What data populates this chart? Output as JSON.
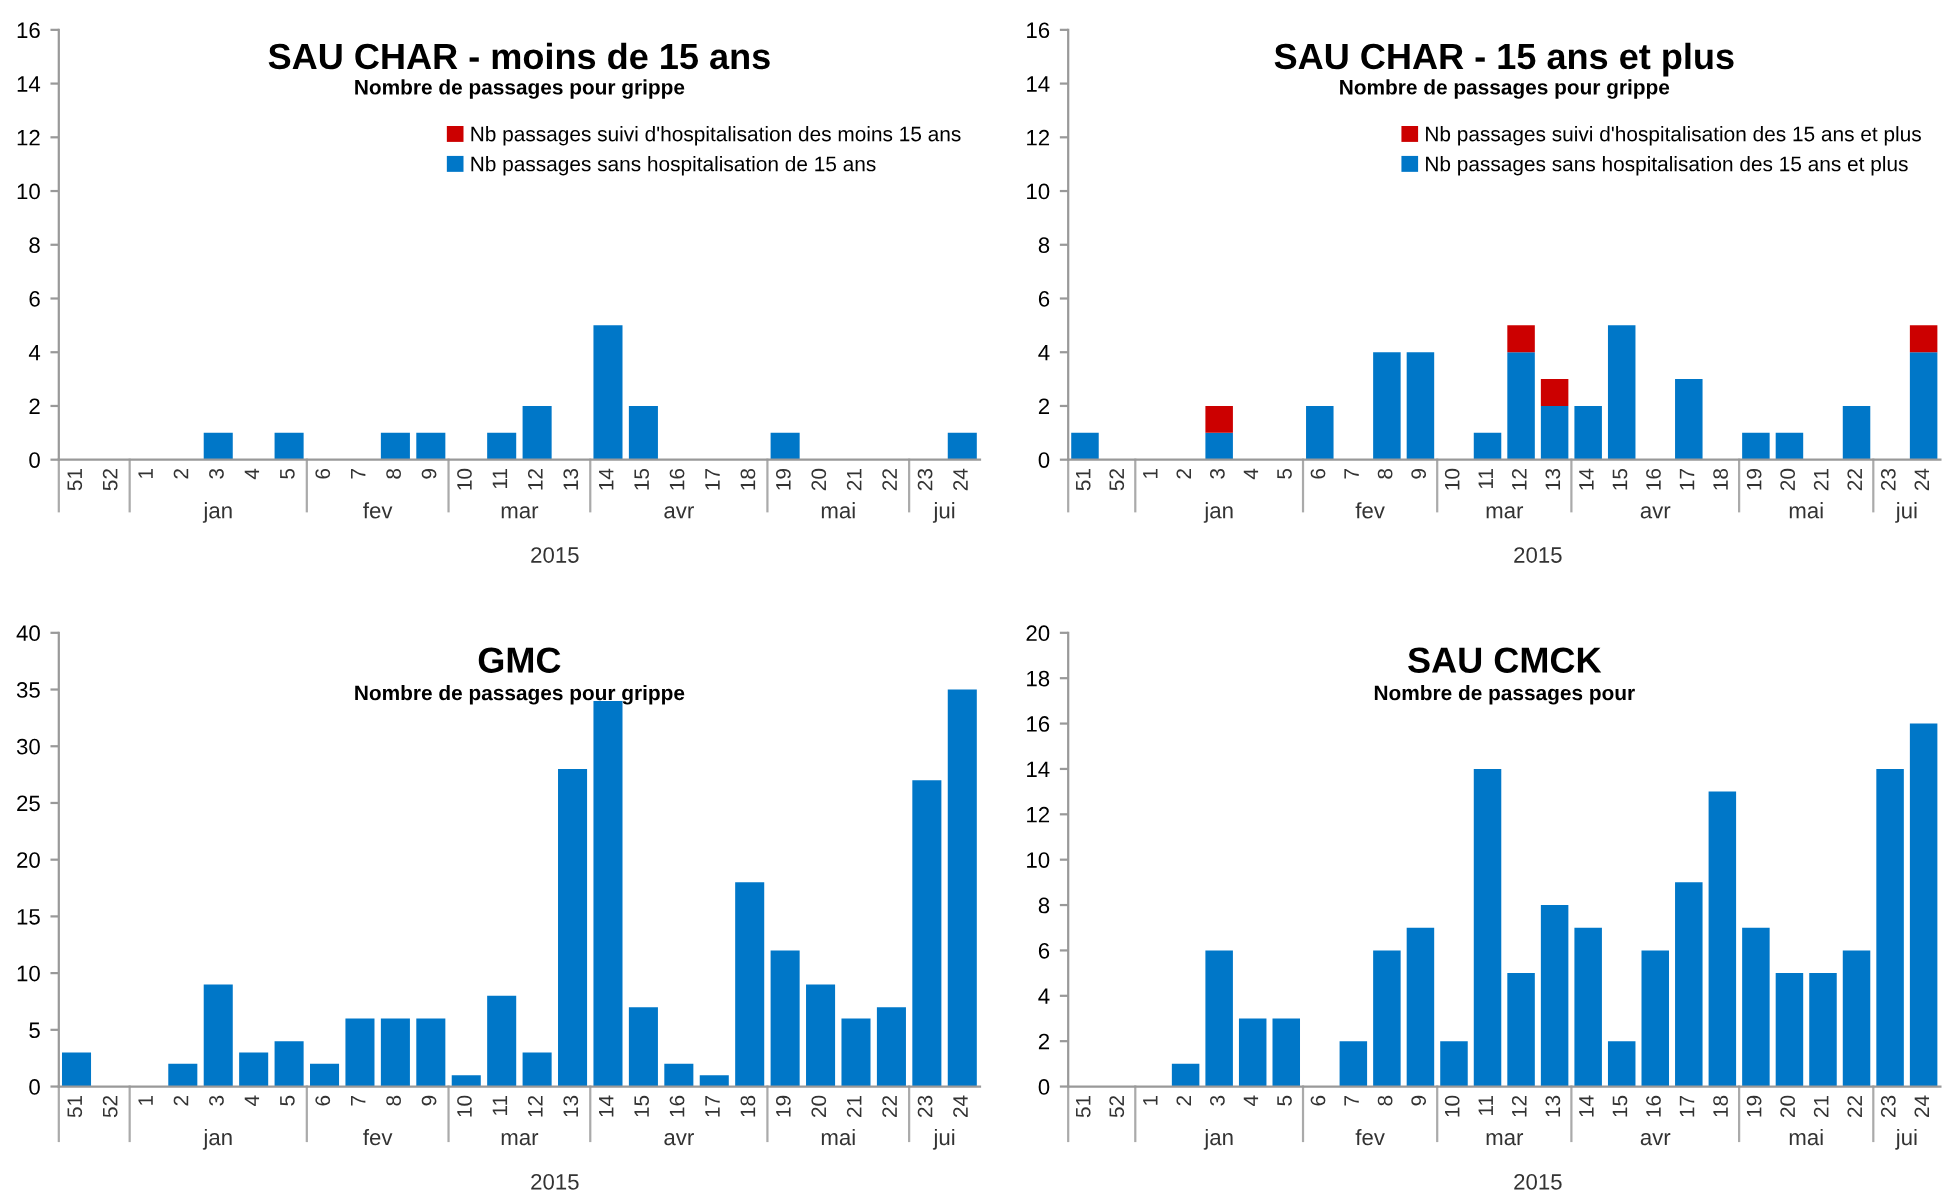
{
  "chart_data": [
    {
      "type": "bar",
      "title": "SAU CHAR - moins de 15 ans",
      "subtitle": "Nombre de passages pour grippe",
      "stacked": true,
      "legend": "top right",
      "categories": [
        "51",
        "52",
        "1",
        "2",
        "3",
        "4",
        "5",
        "6",
        "7",
        "8",
        "9",
        "10",
        "11",
        "12",
        "13",
        "14",
        "15",
        "16",
        "17",
        "18",
        "19",
        "20",
        "21",
        "22",
        "23",
        "24"
      ],
      "series": [
        {
          "name": "Nb passages sans hospitalisation de 15 ans",
          "color": "#0077c8",
          "values": [
            0,
            0,
            0,
            0,
            1,
            0,
            1,
            0,
            0,
            1,
            1,
            0,
            1,
            2,
            0,
            5,
            2,
            0,
            0,
            0,
            1,
            0,
            0,
            0,
            0,
            1
          ]
        },
        {
          "name": "Nb passages suivi d'hospitalisation des moins 15 ans",
          "color": "#cc0000",
          "values": [
            0,
            0,
            0,
            0,
            0,
            0,
            0,
            0,
            0,
            0,
            0,
            0,
            0,
            0,
            0,
            0,
            0,
            0,
            0,
            0,
            0,
            0,
            0,
            0,
            0,
            0
          ]
        }
      ],
      "ylim": [
        0,
        16
      ],
      "yticks": [
        0,
        2,
        4,
        6,
        8,
        10,
        12,
        14,
        16
      ],
      "annotations": [
        "jan",
        "fev",
        "mar",
        "avr",
        "mai",
        "jui",
        "2015"
      ]
    },
    {
      "type": "bar",
      "title": "SAU CHAR - 15 ans et plus",
      "subtitle": "Nombre de passages pour grippe",
      "stacked": true,
      "legend": "top right",
      "categories": [
        "51",
        "52",
        "1",
        "2",
        "3",
        "4",
        "5",
        "6",
        "7",
        "8",
        "9",
        "10",
        "11",
        "12",
        "13",
        "14",
        "15",
        "16",
        "17",
        "18",
        "19",
        "20",
        "21",
        "22",
        "23",
        "24"
      ],
      "series": [
        {
          "name": "Nb passages sans hospitalisation des 15 ans et plus",
          "color": "#0077c8",
          "values": [
            1,
            0,
            0,
            0,
            1,
            0,
            0,
            2,
            0,
            4,
            4,
            0,
            1,
            4,
            2,
            2,
            5,
            0,
            3,
            0,
            1,
            1,
            0,
            2,
            0,
            4
          ]
        },
        {
          "name": "Nb passages suivi d'hospitalisation des 15 ans et plus",
          "color": "#cc0000",
          "values": [
            0,
            0,
            0,
            0,
            1,
            0,
            0,
            0,
            0,
            0,
            0,
            0,
            0,
            1,
            1,
            0,
            0,
            0,
            0,
            0,
            0,
            0,
            0,
            0,
            0,
            1
          ]
        }
      ],
      "ylim": [
        0,
        16
      ],
      "yticks": [
        0,
        2,
        4,
        6,
        8,
        10,
        12,
        14,
        16
      ],
      "annotations": [
        "jan",
        "fev",
        "mar",
        "avr",
        "mai",
        "jui",
        "2015"
      ]
    },
    {
      "type": "bar",
      "title": "GMC",
      "subtitle": "Nombre de passages pour grippe",
      "categories": [
        "51",
        "52",
        "1",
        "2",
        "3",
        "4",
        "5",
        "6",
        "7",
        "8",
        "9",
        "10",
        "11",
        "12",
        "13",
        "14",
        "15",
        "16",
        "17",
        "18",
        "19",
        "20",
        "21",
        "22",
        "23",
        "24"
      ],
      "series": [
        {
          "color": "#0077c8",
          "values": [
            3,
            0,
            0,
            2,
            9,
            3,
            4,
            2,
            6,
            6,
            6,
            1,
            8,
            3,
            28,
            34,
            7,
            2,
            1,
            18,
            12,
            9,
            6,
            7,
            27,
            35
          ]
        }
      ],
      "ylim": [
        0,
        40
      ],
      "yticks": [
        0,
        5,
        10,
        15,
        20,
        25,
        30,
        35,
        40
      ],
      "annotations": [
        "jan",
        "fev",
        "mar",
        "avr",
        "mai",
        "jui",
        "2015"
      ]
    },
    {
      "type": "bar",
      "title": "SAU CMCK",
      "subtitle": "Nombre de passages pour",
      "categories": [
        "51",
        "52",
        "1",
        "2",
        "3",
        "4",
        "5",
        "6",
        "7",
        "8",
        "9",
        "10",
        "11",
        "12",
        "13",
        "14",
        "15",
        "16",
        "17",
        "18",
        "19",
        "20",
        "21",
        "22",
        "23",
        "24"
      ],
      "series": [
        {
          "color": "#0077c8",
          "values": [
            0,
            0,
            0,
            1,
            6,
            3,
            3,
            0,
            2,
            6,
            7,
            2,
            14,
            5,
            8,
            7,
            2,
            6,
            9,
            13,
            7,
            5,
            5,
            6,
            14,
            16
          ]
        }
      ],
      "ylim": [
        0,
        20
      ],
      "yticks": [
        0,
        2,
        4,
        6,
        8,
        10,
        12,
        14,
        16,
        18,
        20
      ],
      "annotations": [
        "jan",
        "fev",
        "mar",
        "avr",
        "mai",
        "jui",
        "2015"
      ]
    }
  ]
}
